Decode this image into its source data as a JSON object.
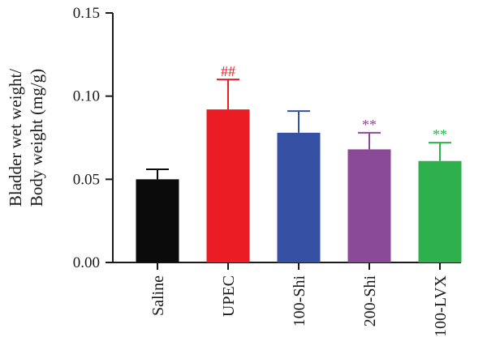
{
  "chart_data": {
    "type": "bar",
    "title": "",
    "ylabel_lines": [
      "Bladder wet weight/",
      "Body weight (mg/g)"
    ],
    "xlabel": "",
    "ylim": [
      0,
      0.15
    ],
    "yticks": [
      "0.00",
      "0.05",
      "0.10",
      "0.15"
    ],
    "ytick_values": [
      0,
      0.05,
      0.1,
      0.15
    ],
    "categories": [
      "Saline",
      "UPEC",
      "100-Shi",
      "200-Shi",
      "100-LVX"
    ],
    "values": [
      0.05,
      0.092,
      0.078,
      0.068,
      0.061
    ],
    "errors": [
      0.006,
      0.018,
      0.013,
      0.01,
      0.011
    ],
    "colors": [
      "#0b0b0b",
      "#ec1c24",
      "#3651a3",
      "#8b4a98",
      "#2eb14c"
    ],
    "annotations": [
      "",
      "##",
      "",
      "**",
      "**"
    ],
    "grid": false,
    "legend": "none"
  }
}
